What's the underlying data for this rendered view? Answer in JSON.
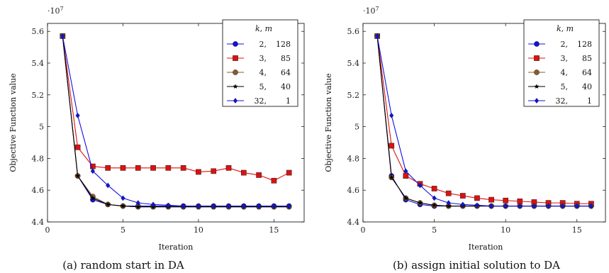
{
  "chart_data": [
    {
      "type": "line",
      "caption": "(a) random start in DA",
      "xlabel": "Iteration",
      "ylabel": "Objective Function value",
      "scale_base": "·10",
      "scale_exp": "7",
      "xlim": [
        0,
        17
      ],
      "ylim": [
        4.4,
        5.65
      ],
      "xticks": [
        "0",
        "5",
        "10",
        "15"
      ],
      "yticks": [
        "4.4",
        "4.6",
        "4.8",
        "5",
        "5.2",
        "5.4",
        "5.6"
      ],
      "legend_title": "k, m",
      "legend_position": "top-right",
      "x": [
        1,
        2,
        3,
        4,
        5,
        6,
        7,
        8,
        9,
        10,
        11,
        12,
        13,
        14,
        15,
        16
      ],
      "series": [
        {
          "name": "2, 128",
          "color": "#1010e0",
          "marker": "circle",
          "values": [
            5.57,
            4.69,
            4.54,
            4.51,
            4.5,
            4.5,
            4.5,
            4.5,
            4.5,
            4.5,
            4.5,
            4.5,
            4.5,
            4.5,
            4.5,
            4.5
          ]
        },
        {
          "name": "3, 85",
          "color": "#dd1111",
          "marker": "square",
          "values": [
            5.57,
            4.87,
            4.75,
            4.74,
            4.74,
            4.74,
            4.74,
            4.74,
            4.74,
            4.715,
            4.72,
            4.74,
            4.71,
            4.695,
            4.66,
            4.71
          ]
        },
        {
          "name": "4, 64",
          "color": "#8b5a2b",
          "marker": "circle",
          "values": [
            5.57,
            4.69,
            4.56,
            4.51,
            4.5,
            4.495,
            4.495,
            4.495,
            4.495,
            4.495,
            4.495,
            4.495,
            4.495,
            4.495,
            4.495,
            4.495
          ]
        },
        {
          "name": "5, 40",
          "color": "#000000",
          "marker": "star",
          "values": [
            5.57,
            4.69,
            4.55,
            4.51,
            4.5,
            4.495,
            4.495,
            4.495,
            4.495,
            4.495,
            4.495,
            4.495,
            4.495,
            4.495,
            4.495,
            4.495
          ]
        },
        {
          "name": "32, 1",
          "color": "#1010e0",
          "marker": "diamond",
          "values": [
            5.57,
            5.07,
            4.72,
            4.63,
            4.55,
            4.52,
            4.51,
            4.505,
            4.5,
            4.5,
            4.5,
            4.5,
            4.5,
            4.5,
            4.5,
            4.5
          ]
        }
      ]
    },
    {
      "type": "line",
      "caption": "(b) assign initial solution to DA",
      "xlabel": "Iteration",
      "ylabel": "Objective Function value",
      "scale_base": "·10",
      "scale_exp": "7",
      "xlim": [
        0,
        17
      ],
      "ylim": [
        4.4,
        5.65
      ],
      "xticks": [
        "0",
        "5",
        "10",
        "15"
      ],
      "yticks": [
        "4.4",
        "4.6",
        "4.8",
        "5",
        "5.2",
        "5.4",
        "5.6"
      ],
      "legend_title": "k, m",
      "legend_position": "top-right",
      "x": [
        1,
        2,
        3,
        4,
        5,
        6,
        7,
        8,
        9,
        10,
        11,
        12,
        13,
        14,
        15,
        16
      ],
      "series": [
        {
          "name": "2, 128",
          "color": "#1010e0",
          "marker": "circle",
          "values": [
            5.57,
            4.69,
            4.54,
            4.51,
            4.5,
            4.5,
            4.5,
            4.5,
            4.5,
            4.5,
            4.5,
            4.5,
            4.5,
            4.5,
            4.5,
            4.5
          ]
        },
        {
          "name": "3, 85",
          "color": "#dd1111",
          "marker": "square",
          "values": [
            5.57,
            4.88,
            4.69,
            4.64,
            4.61,
            4.58,
            4.565,
            4.55,
            4.54,
            4.535,
            4.53,
            4.525,
            4.52,
            4.52,
            4.515,
            4.515
          ]
        },
        {
          "name": "4, 64",
          "color": "#8b5a2b",
          "marker": "circle",
          "values": [
            5.57,
            4.68,
            4.55,
            4.52,
            4.505,
            4.5,
            4.5,
            4.5,
            4.5,
            4.5,
            4.5,
            4.5,
            4.5,
            4.5,
            4.5,
            4.5
          ]
        },
        {
          "name": "5, 40",
          "color": "#000000",
          "marker": "star",
          "values": [
            5.57,
            4.68,
            4.55,
            4.52,
            4.505,
            4.5,
            4.5,
            4.5,
            4.5,
            4.5,
            4.5,
            4.5,
            4.5,
            4.5,
            4.5,
            4.5
          ]
        },
        {
          "name": "32, 1",
          "color": "#1010e0",
          "marker": "diamond",
          "values": [
            5.57,
            5.07,
            4.72,
            4.63,
            4.55,
            4.52,
            4.51,
            4.505,
            4.5,
            4.5,
            4.5,
            4.5,
            4.5,
            4.5,
            4.5,
            4.5
          ]
        }
      ]
    }
  ]
}
